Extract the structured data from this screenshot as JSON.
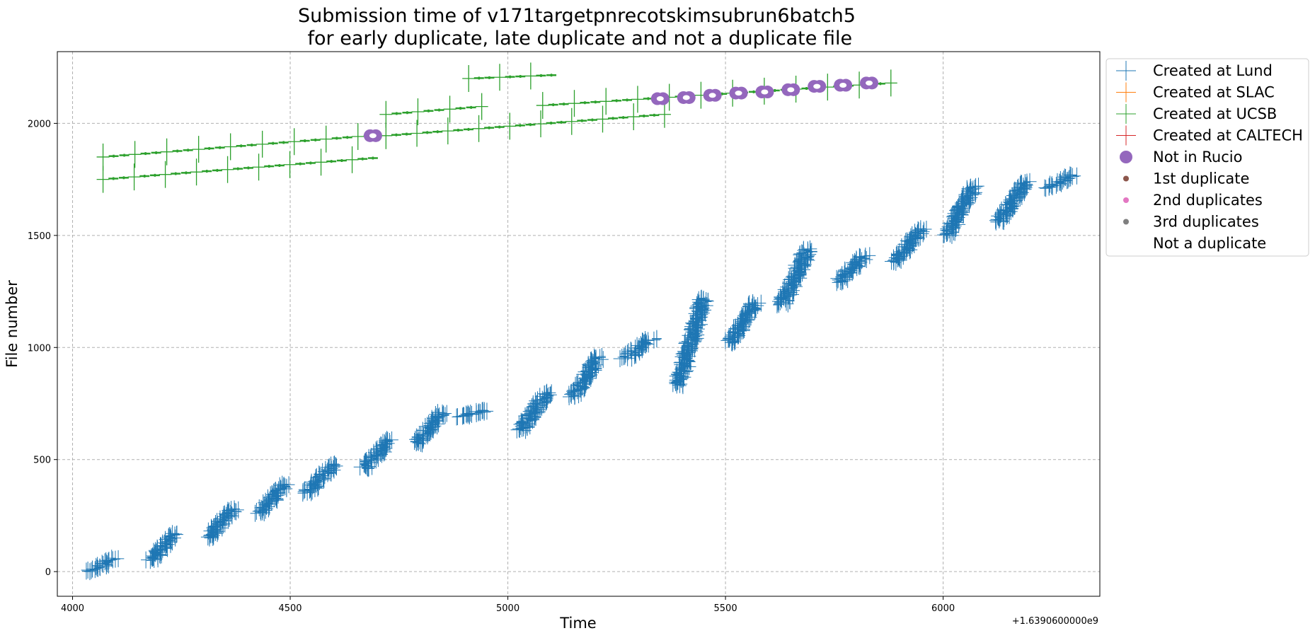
{
  "chart_data": {
    "type": "scatter",
    "title_line1": "Submission time of v171targetpnrecotskimsubrun6batch5",
    "title_line2": " for early duplicate, late duplicate and not a duplicate file",
    "xlabel": "Time",
    "ylabel": "File number",
    "x_offset_label": "+1.6390600000e9",
    "xlim": [
      3965,
      6360
    ],
    "ylim": [
      -110,
      2320
    ],
    "xticks": [
      4000,
      4500,
      5000,
      5500,
      6000
    ],
    "yticks": [
      0,
      500,
      1000,
      1500,
      2000
    ],
    "grid": true,
    "legend_position": "outside-top-right",
    "legend": [
      {
        "label": "Created at Lund",
        "marker": "plus",
        "color": "#1f77b4"
      },
      {
        "label": "Created at SLAC",
        "marker": "plus",
        "color": "#ff7f0e"
      },
      {
        "label": "Created at UCSB",
        "marker": "plus",
        "color": "#2ca02c"
      },
      {
        "label": "Created at CALTECH",
        "marker": "plus",
        "color": "#d62728"
      },
      {
        "label": "Not in Rucio",
        "marker": "circle-large",
        "color": "#9467bd"
      },
      {
        "label": "1st duplicate",
        "marker": "circle-small",
        "color": "#8c564b"
      },
      {
        "label": "2nd duplicates",
        "marker": "circle-small",
        "color": "#e377c2"
      },
      {
        "label": "3rd duplicates",
        "marker": "circle-small",
        "color": "#7f7f7f"
      },
      {
        "label": "Not a duplicate",
        "marker": "none",
        "color": "#ffffff"
      }
    ],
    "series": [
      {
        "name": "Created at Lund",
        "color": "#1f77b4",
        "clusters": [
          {
            "x": 4070,
            "y_min": 0,
            "y_max": 60
          },
          {
            "x": 4210,
            "y_min": 50,
            "y_max": 170
          },
          {
            "x": 4340,
            "y_min": 150,
            "y_max": 280
          },
          {
            "x": 4460,
            "y_min": 260,
            "y_max": 390
          },
          {
            "x": 4570,
            "y_min": 350,
            "y_max": 480
          },
          {
            "x": 4700,
            "y_min": 460,
            "y_max": 590
          },
          {
            "x": 4820,
            "y_min": 570,
            "y_max": 710
          },
          {
            "x": 4920,
            "y_min": 690,
            "y_max": 720
          },
          {
            "x": 5060,
            "y_min": 630,
            "y_max": 800
          },
          {
            "x": 5180,
            "y_min": 780,
            "y_max": 960
          },
          {
            "x": 5300,
            "y_min": 950,
            "y_max": 1040
          },
          {
            "x": 5420,
            "y_min": 830,
            "y_max": 1220
          },
          {
            "x": 5540,
            "y_min": 1020,
            "y_max": 1200
          },
          {
            "x": 5660,
            "y_min": 1190,
            "y_max": 1440
          },
          {
            "x": 5790,
            "y_min": 1290,
            "y_max": 1410
          },
          {
            "x": 5920,
            "y_min": 1380,
            "y_max": 1530
          },
          {
            "x": 6040,
            "y_min": 1500,
            "y_max": 1720
          },
          {
            "x": 6160,
            "y_min": 1560,
            "y_max": 1740
          },
          {
            "x": 6270,
            "y_min": 1710,
            "y_max": 1770
          }
        ]
      },
      {
        "name": "Created at UCSB",
        "color": "#2ca02c",
        "tracks": [
          {
            "x_start": 4070,
            "x_end": 4680,
            "y_start": 1850,
            "y_end": 1945
          },
          {
            "x_start": 4070,
            "x_end": 4690,
            "y_start": 1750,
            "y_end": 1845
          },
          {
            "x_start": 4720,
            "x_end": 4940,
            "y_start": 2040,
            "y_end": 2075
          },
          {
            "x_start": 4720,
            "x_end": 5360,
            "y_start": 1945,
            "y_end": 2040
          },
          {
            "x_start": 4910,
            "x_end": 5100,
            "y_start": 2200,
            "y_end": 2215
          },
          {
            "x_start": 5080,
            "x_end": 5880,
            "y_start": 2080,
            "y_end": 2180
          }
        ]
      },
      {
        "name": "Not in Rucio",
        "color": "#9467bd",
        "points": [
          {
            "x": 4690,
            "y": 1945
          },
          {
            "x": 5350,
            "y": 2110
          },
          {
            "x": 5410,
            "y": 2115
          },
          {
            "x": 5470,
            "y": 2125
          },
          {
            "x": 5530,
            "y": 2135
          },
          {
            "x": 5590,
            "y": 2140
          },
          {
            "x": 5650,
            "y": 2150
          },
          {
            "x": 5710,
            "y": 2165
          },
          {
            "x": 5770,
            "y": 2170
          },
          {
            "x": 5830,
            "y": 2180
          }
        ]
      }
    ]
  }
}
